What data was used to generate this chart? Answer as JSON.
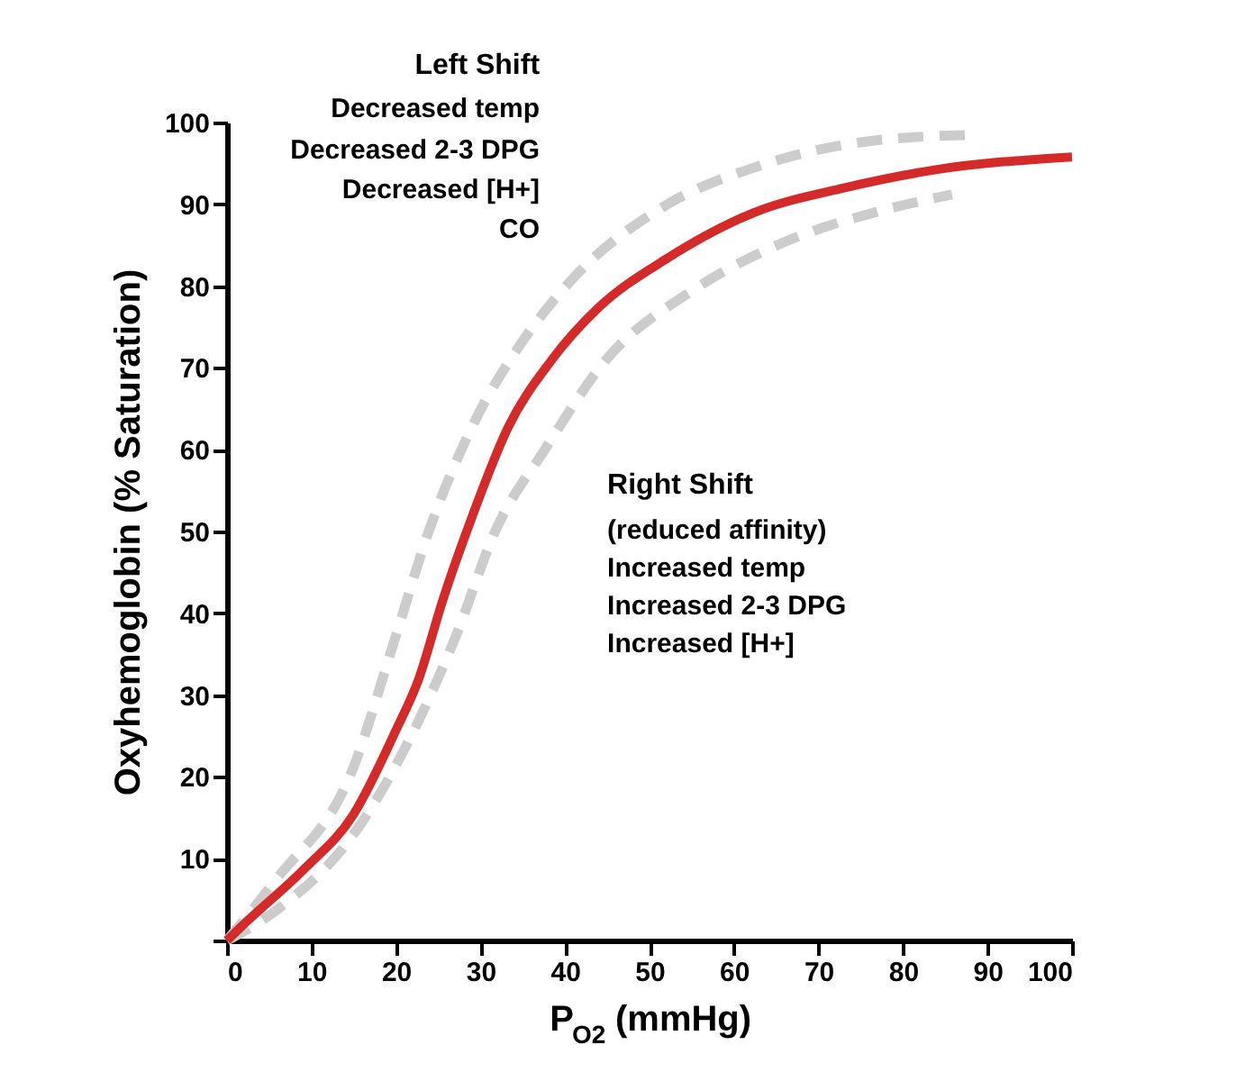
{
  "chart_data": {
    "type": "line",
    "xlabel": "P$_{O2}$ (mmHg)",
    "ylabel": "Oxyhemoglobin  (% Saturation)",
    "xlim": [
      0,
      100
    ],
    "xticks": [
      0,
      10,
      20,
      30,
      40,
      50,
      60,
      70,
      80,
      90,
      100
    ],
    "ylim": [
      0,
      100
    ],
    "yticks": [
      {
        "value": 0,
        "label": null
      },
      10,
      20,
      30,
      40,
      50,
      60,
      70,
      80,
      90,
      100
    ],
    "grid": false,
    "marker": "none",
    "series": [
      {
        "color": "#cccccc",
        "line_style": "dashed",
        "x": [
          0,
          5.7,
          14.9,
          19.9,
          24,
          29,
          34.8,
          41,
          51.8,
          62.4,
          76.6,
          88.3
        ],
        "values": [
          0,
          7.3,
          21,
          37,
          50.4,
          62.8,
          73,
          81,
          89.8,
          94.5,
          97.8,
          98.5
        ]
      },
      {
        "color": "#cccccc",
        "line_style": "dashed",
        "x": [
          0,
          5.7,
          15.6,
          21.3,
          27,
          31.9,
          37.6,
          44.7,
          55.3,
          66,
          76.6,
          85.8
        ],
        "values": [
          0,
          3.6,
          13.9,
          24,
          37,
          50.4,
          60,
          70.8,
          79.6,
          85.4,
          89,
          91.2
        ]
      },
      {
        "color": "#d42a2a",
        "line_style": "solid",
        "x": [
          0,
          1.8,
          9.2,
          14.9,
          19.9,
          22.7,
          25.5,
          29,
          33.3,
          38.3,
          44,
          51.8,
          62.4,
          73,
          83.7,
          100
        ],
        "values": [
          0,
          1.8,
          8.8,
          15.3,
          25.5,
          32,
          41.5,
          51.8,
          62.8,
          70.8,
          77.4,
          83.2,
          89,
          92,
          94.2,
          95.8
        ]
      }
    ],
    "annotations": [
      "Left Shift",
      "Decreased temp",
      "Decreased 2-3 DPG",
      "Decreased [H+]",
      "CO",
      "Right Shift",
      "(reduced affinity)",
      "Increased temp",
      "Increased 2-3 DPG",
      "Increased [H+]"
    ]
  }
}
